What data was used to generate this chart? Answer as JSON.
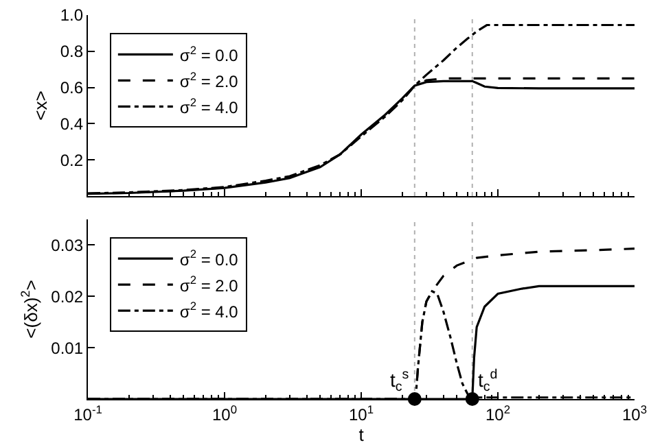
{
  "chart_data": [
    {
      "type": "line",
      "ylabel": "<x>",
      "log": "x",
      "xlim": [
        0.1,
        1000
      ],
      "xticks": [
        {
          "value": 0.1,
          "label": null
        },
        {
          "value": 1,
          "label": null
        },
        {
          "value": 10,
          "label": null
        },
        {
          "value": 100,
          "label": null
        },
        {
          "value": 1000,
          "label": null
        }
      ],
      "ylim": [
        0,
        1.0
      ],
      "yticks": [
        0.2,
        0.4,
        0.6,
        0.8,
        {
          "value": 1.0,
          "label": "1.0"
        }
      ],
      "tick_labels": "y",
      "grid": false,
      "legend": "top left",
      "marker": "none",
      "ref_lines": [
        {
          "axis": "x",
          "value": 24.6,
          "color": "#b0b0b0",
          "line_style": "dotted"
        },
        {
          "axis": "x",
          "value": 65,
          "color": "#b0b0b0",
          "line_style": "dotted"
        }
      ],
      "series": [
        {
          "name": "σ$^{2}$ = 0.0",
          "color": "#000000",
          "line_style": "solid",
          "x": [
            0.1,
            0.2,
            0.5,
            1,
            2,
            3,
            5,
            7,
            10,
            15,
            20,
            24.6,
            30,
            40,
            50,
            60,
            65,
            70,
            80,
            100,
            200,
            1000
          ],
          "values": [
            0.013,
            0.017,
            0.03,
            0.045,
            0.075,
            0.1,
            0.16,
            0.23,
            0.34,
            0.45,
            0.54,
            0.61,
            0.63,
            0.635,
            0.635,
            0.635,
            0.635,
            0.625,
            0.605,
            0.597,
            0.595,
            0.595
          ]
        },
        {
          "name": "σ$^{2}$ = 2.0",
          "color": "#000000",
          "line_style": "dashed",
          "x": [
            0.1,
            0.2,
            0.5,
            1,
            2,
            3,
            5,
            7,
            10,
            15,
            20,
            24.6,
            30,
            40,
            100,
            1000
          ],
          "values": [
            0.014,
            0.018,
            0.031,
            0.047,
            0.08,
            0.105,
            0.165,
            0.23,
            0.335,
            0.44,
            0.53,
            0.61,
            0.64,
            0.65,
            0.65,
            0.65
          ]
        },
        {
          "name": "σ$^{2}$ = 4.0",
          "color": "#000000",
          "line_style": "dashdot",
          "x": [
            0.1,
            0.2,
            0.5,
            1,
            2,
            3,
            5,
            7,
            10,
            15,
            20,
            24.6,
            30,
            40,
            50,
            60,
            70,
            83,
            100,
            1000
          ],
          "values": [
            0.015,
            0.02,
            0.033,
            0.05,
            0.085,
            0.11,
            0.17,
            0.23,
            0.33,
            0.44,
            0.53,
            0.61,
            0.67,
            0.75,
            0.82,
            0.87,
            0.91,
            0.945,
            0.945,
            0.945
          ]
        }
      ]
    },
    {
      "type": "line",
      "ylabel": "<(δx)$^{2}$>",
      "xlabel": "t",
      "log": "x",
      "xlim": [
        0.1,
        1000
      ],
      "xticks": [
        {
          "value": 0.1,
          "label": "10$^{-1}$"
        },
        {
          "value": 1,
          "label": "10$^{0}$"
        },
        {
          "value": 10,
          "label": "10$^{1}$"
        },
        {
          "value": 100,
          "label": "10$^{2}$"
        },
        {
          "value": 1000,
          "label": "10$^{3}$"
        }
      ],
      "ylim": [
        0,
        0.035
      ],
      "yticks": [
        0.01,
        0.02,
        0.03
      ],
      "grid": false,
      "legend": "top left",
      "marker": "none",
      "ref_lines": [
        {
          "axis": "x",
          "value": 24.6,
          "color": "#b0b0b0",
          "line_style": "dotted"
        },
        {
          "axis": "x",
          "value": 65,
          "color": "#b0b0b0",
          "line_style": "dotted"
        }
      ],
      "annotations": [
        {
          "text": "t$_{c}$$^{s}$",
          "x": 24.6,
          "y": 0
        },
        {
          "text": "t$_{c}$$^{d}$",
          "x": 65,
          "y": 0
        }
      ],
      "series": [
        {
          "name": "σ$^{2}$ = 0.0",
          "color": "#000000",
          "line_style": "solid",
          "x": [
            0.1,
            65,
            67,
            70,
            80,
            100,
            150,
            200,
            1000
          ],
          "values": [
            0,
            0,
            0.008,
            0.014,
            0.018,
            0.0205,
            0.0215,
            0.022,
            0.022
          ]
        },
        {
          "name": "σ$^{2}$ = 2.0",
          "color": "#000000",
          "line_style": "dashed",
          "x": [
            0.1,
            25,
            26,
            28,
            30,
            33,
            40,
            50,
            70,
            100,
            200,
            500,
            1000
          ],
          "values": [
            0,
            0,
            0.006,
            0.015,
            0.019,
            0.021,
            0.024,
            0.026,
            0.0275,
            0.028,
            0.0287,
            0.029,
            0.0293
          ]
        },
        {
          "name": "σ$^{2}$ = 4.0",
          "color": "#000000",
          "line_style": "dashdot",
          "x": [
            0.1,
            25,
            26,
            28,
            30,
            33,
            36,
            40,
            45,
            50,
            55,
            60,
            65,
            100,
            1000
          ],
          "values": [
            0,
            0,
            0.006,
            0.015,
            0.019,
            0.021,
            0.0205,
            0.017,
            0.012,
            0.007,
            0.003,
            0.001,
            0.0003,
            0.0003,
            0.0003
          ]
        },
        {
          "type": "scatter",
          "marker": "circle",
          "color": "#000000",
          "x": [
            24.6,
            65
          ],
          "values": [
            0,
            0
          ]
        }
      ]
    }
  ]
}
